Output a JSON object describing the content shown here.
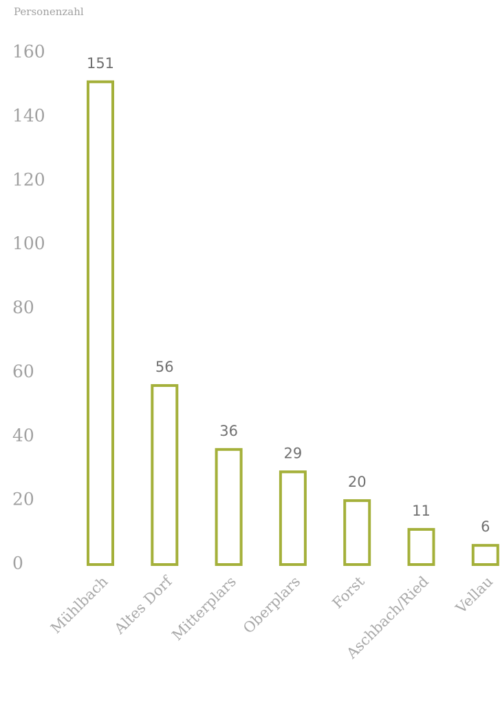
{
  "chart_data": {
    "type": "bar",
    "y_axis_label": "Personenzahl",
    "categories": [
      "Mühlbach",
      "Altes Dorf",
      "Mitterplars",
      "Oberplars",
      "Forst",
      "Aschbach/Ried",
      "Vellau"
    ],
    "values": [
      151,
      56,
      36,
      29,
      20,
      11,
      6
    ],
    "color": "#a4b03a",
    "ylim": [
      0,
      160
    ],
    "yticks": [
      0,
      20,
      40,
      60,
      80,
      100,
      120,
      140,
      160
    ],
    "grid": false
  }
}
